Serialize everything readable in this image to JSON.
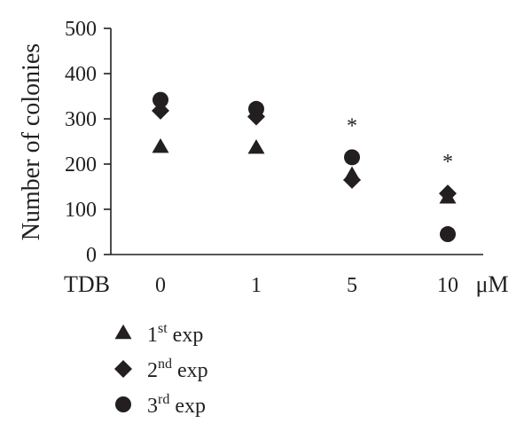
{
  "chart_data": {
    "type": "scatter",
    "ylabel": "Number of colonies",
    "xlabel_prefix": "TDB",
    "x_unit": "μM",
    "categories": [
      "0",
      "1",
      "5",
      "10"
    ],
    "yticks": [
      "0",
      "100",
      "200",
      "300",
      "400",
      "500"
    ],
    "ylim": [
      0,
      500
    ],
    "grid": false,
    "legend_position": "bottom-left",
    "series": [
      {
        "name_base": "1",
        "name_sup": "st",
        "name_suffix": " exp",
        "marker": "triangle",
        "values": [
          237,
          235,
          175,
          125
        ]
      },
      {
        "name_base": "2",
        "name_sup": "nd",
        "name_suffix": " exp",
        "marker": "diamond",
        "values": [
          318,
          305,
          165,
          135
        ]
      },
      {
        "name_base": "3",
        "name_sup": "rd",
        "name_suffix": " exp",
        "marker": "circle",
        "values": [
          342,
          322,
          215,
          45
        ]
      }
    ],
    "annotations": [
      {
        "category": "5",
        "text": "*"
      },
      {
        "category": "10",
        "text": "*"
      }
    ]
  },
  "colors": {
    "marker": "#231f20",
    "axis": "#231f20"
  }
}
